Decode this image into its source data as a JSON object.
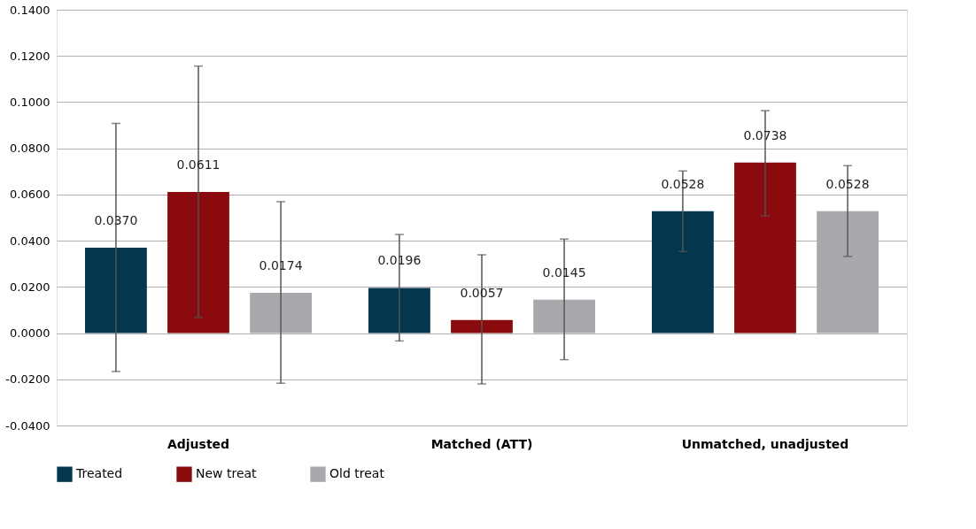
{
  "chart_data": {
    "type": "bar",
    "categories": [
      "Adjusted",
      "Matched (ATT)",
      "Unmatched, unadjusted"
    ],
    "series": [
      {
        "name": "Treated",
        "color": "#05364f",
        "values": [
          0.037,
          0.0196,
          0.0528
        ],
        "value_labels": [
          "0.0370",
          "0.0196",
          "0.0528"
        ],
        "errors": [
          [
            -0.0166,
            0.0908
          ],
          [
            -0.0034,
            0.0427
          ],
          [
            0.0353,
            0.0702
          ]
        ]
      },
      {
        "name": "New treat",
        "color": "#8b0a0d",
        "values": [
          0.0611,
          0.0057,
          0.0738
        ],
        "value_labels": [
          "0.0611",
          "0.0057",
          "0.0738"
        ],
        "errors": [
          [
            0.0068,
            0.1156
          ],
          [
            -0.022,
            0.0339
          ],
          [
            0.0508,
            0.0963
          ]
        ]
      },
      {
        "name": "Old treat",
        "color": "#a7a9ac",
        "values": [
          0.0174,
          0.0145,
          0.0528
        ],
        "value_labels": [
          "0.0174",
          "0.0145",
          "0.0528"
        ],
        "errors": [
          [
            -0.0217,
            0.0569
          ],
          [
            -0.0115,
            0.0407
          ],
          [
            0.0332,
            0.0725
          ]
        ]
      }
    ],
    "ylim": [
      -0.04,
      0.14
    ],
    "yticks": [
      {
        "value": -0.04,
        "label": "-0.0400"
      },
      {
        "value": -0.02,
        "label": "-0.0200"
      },
      {
        "value": 0,
        "label": "0.0000"
      },
      {
        "value": 0.02,
        "label": "0.0200"
      },
      {
        "value": 0.04,
        "label": "0.0400"
      },
      {
        "value": 0.06,
        "label": "0.0600"
      },
      {
        "value": 0.08,
        "label": "0.0800"
      },
      {
        "value": 0.1,
        "label": "0.1000"
      },
      {
        "value": 0.12,
        "label": "0.1200"
      },
      {
        "value": 0.14,
        "label": "0.1400"
      }
    ],
    "grid": "y",
    "legend": "bottom"
  }
}
